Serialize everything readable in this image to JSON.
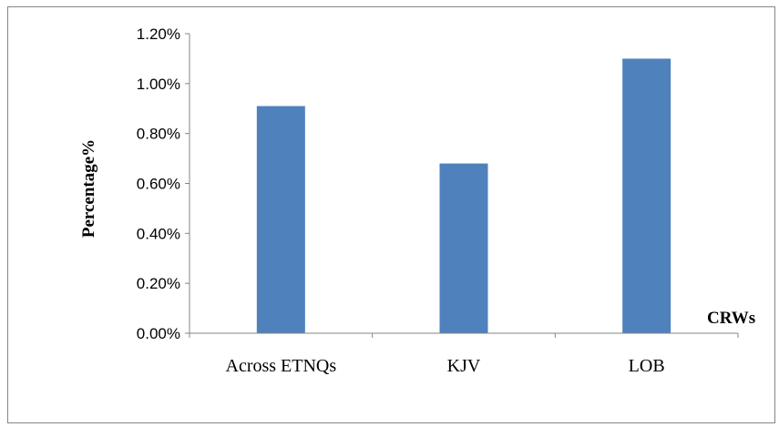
{
  "chart_data": {
    "type": "bar",
    "categories": [
      "Across ETNQs",
      "KJV",
      "LOB"
    ],
    "values": [
      0.0091,
      0.0068,
      0.011
    ],
    "ylim": [
      0,
      0.012
    ],
    "yticks": [
      "0.00%",
      "0.20%",
      "0.40%",
      "0.60%",
      "0.80%",
      "1.00%",
      "1.20%"
    ],
    "ylabel": "Percentage%",
    "xlabel": "CRWs",
    "bar_color": "#4F81BD",
    "grid": false,
    "legend": "none"
  }
}
